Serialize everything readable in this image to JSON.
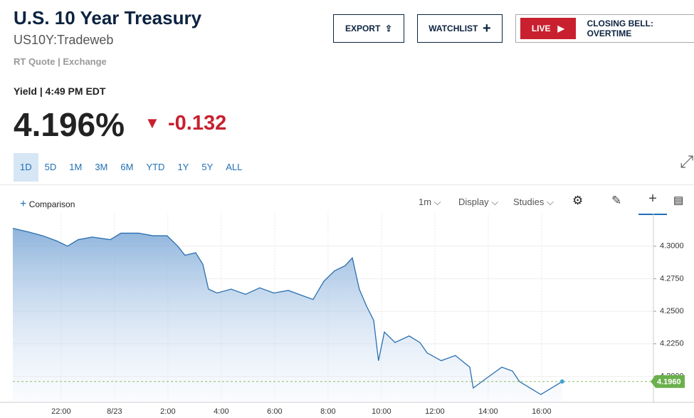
{
  "header": {
    "title": "U.S. 10 Year Treasury",
    "symbol": "US10Y:Tradeweb",
    "quote_type": "RT Quote",
    "quote_source": "Exchange",
    "buttons": {
      "export": "EXPORT",
      "watchlist": "WATCHLIST",
      "live": "LIVE",
      "show": "CLOSING BELL: OVERTIME"
    }
  },
  "quote": {
    "label": "Yield",
    "time": "4:49 PM EDT",
    "price": "4.196%",
    "change": "-0.132"
  },
  "ranges": [
    "1D",
    "5D",
    "1M",
    "3M",
    "6M",
    "YTD",
    "1Y",
    "5Y",
    "ALL"
  ],
  "toolbar": {
    "comparison": "Comparison",
    "interval": "1m",
    "display": "Display",
    "studies": "Studies"
  },
  "chart_data": {
    "type": "line",
    "color": "#2a6fb0",
    "grid": true,
    "x": [
      -3.81,
      -3.23,
      -2.69,
      -2.16,
      -1.76,
      -1.36,
      -0.83,
      -0.16,
      0.24,
      0.91,
      1.44,
      1.97,
      2.37,
      2.64,
      3.04,
      3.31,
      3.52,
      3.84,
      4.37,
      4.91,
      5.44,
      5.97,
      6.51,
      7.04,
      7.44,
      7.84,
      8.24,
      8.64,
      8.91,
      9.17,
      9.44,
      9.71,
      9.89,
      10.11,
      10.51,
      11.04,
      11.44,
      11.71,
      12.24,
      12.77,
      13.31,
      13.44,
      13.97,
      14.51,
      14.91,
      15.17,
      15.57,
      15.97,
      16.37,
      16.77
    ],
    "series": [
      {
        "name": "US10Y",
        "color": "#2a6fb0",
        "values": [
          4.3137,
          4.311,
          4.308,
          4.304,
          4.3,
          4.305,
          4.307,
          4.305,
          4.31,
          4.31,
          4.308,
          4.308,
          4.3,
          4.293,
          4.295,
          4.286,
          4.267,
          4.264,
          4.267,
          4.263,
          4.268,
          4.264,
          4.266,
          4.262,
          4.259,
          4.273,
          4.281,
          4.285,
          4.291,
          4.267,
          4.254,
          4.243,
          4.212,
          4.234,
          4.226,
          4.231,
          4.226,
          4.218,
          4.212,
          4.216,
          4.207,
          4.191,
          4.199,
          4.207,
          4.204,
          4.196,
          4.191,
          4.186,
          4.191,
          4.196
        ]
      }
    ],
    "current": {
      "value": 4.196,
      "label": "4.1960"
    },
    "xlim": [
      -3.81,
      20.19
    ],
    "xticks": [
      {
        "value": -2,
        "label": "22:00"
      },
      {
        "value": 0,
        "label": "8/23"
      },
      {
        "value": 2,
        "label": "2:00"
      },
      {
        "value": 4,
        "label": "4:00"
      },
      {
        "value": 6,
        "label": "6:00"
      },
      {
        "value": 8,
        "label": "8:00"
      },
      {
        "value": 10,
        "label": "10:00"
      },
      {
        "value": 12,
        "label": "12:00"
      },
      {
        "value": 14,
        "label": "14:00"
      },
      {
        "value": 16,
        "label": "16:00"
      }
    ],
    "ylim": [
      4.18,
      4.325
    ],
    "yticks": [
      {
        "value": 4.3,
        "label": "4.3000"
      },
      {
        "value": 4.275,
        "label": "4.2750"
      },
      {
        "value": 4.25,
        "label": "4.2500"
      },
      {
        "value": 4.225,
        "label": "4.2250"
      },
      {
        "value": 4.2,
        "label": "4.2000"
      }
    ]
  }
}
